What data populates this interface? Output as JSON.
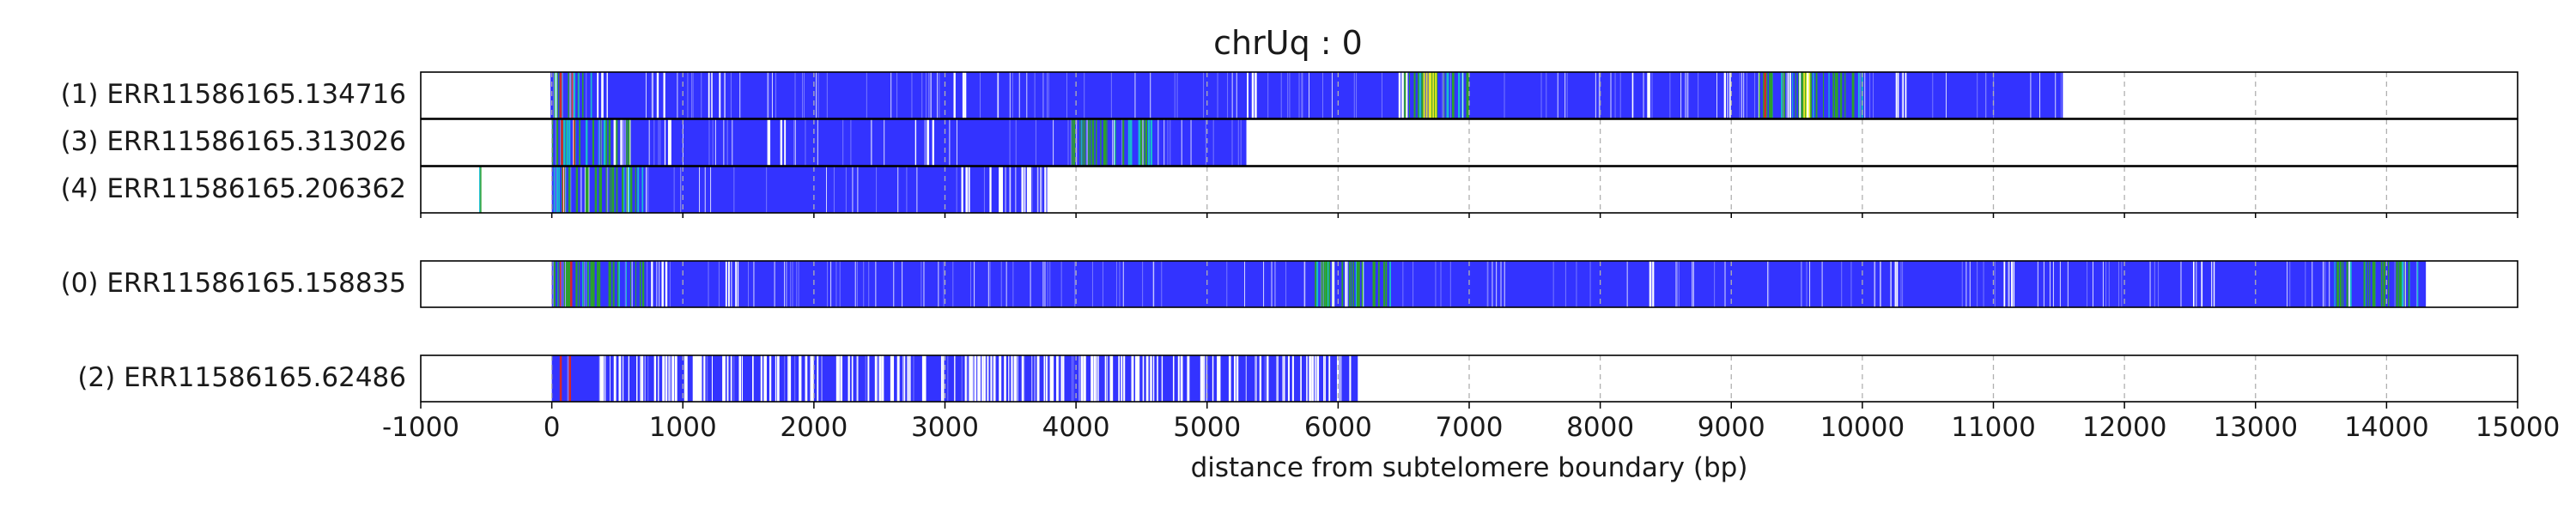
{
  "chart_data": {
    "type": "read-coverage-stripes",
    "title": "chrUq : 0",
    "xlabel": "distance from subtelomere boundary (bp)",
    "xlim": [
      -1000,
      15000
    ],
    "xticks": [
      -1000,
      0,
      1000,
      2000,
      3000,
      4000,
      5000,
      6000,
      7000,
      8000,
      9000,
      10000,
      11000,
      12000,
      13000,
      14000,
      15000
    ],
    "grid_x": true,
    "colors": {
      "telomere": "#3333ff",
      "green": "#2ca02c",
      "yellow": "#e8e820",
      "red": "#d62728",
      "cyan": "#17becf",
      "white": "#ffffff"
    },
    "groups": [
      {
        "reads": [
          {
            "label": "(1) ERR11586165.134716",
            "start": -10,
            "end": 11530,
            "green_stripes": [
              [
                0,
                300
              ],
              [
                6500,
                7000
              ],
              [
                9200,
                10000
              ]
            ],
            "yellow_stripes": [
              6650,
              6700,
              9550
            ],
            "red_stripes": [
              60,
              150,
              9250
            ],
            "white_gaps": [
              420,
              780,
              1240,
              3120,
              5330,
              6480,
              8300,
              9010,
              9500,
              10300
            ]
          },
          {
            "label": "(3) ERR11586165.313026",
            "start": 0,
            "end": 5300,
            "green_stripes": [
              [
                0,
                600
              ],
              [
                3950,
                4580
              ]
            ],
            "yellow_stripes": [],
            "red_stripes": [
              70,
              160
            ],
            "white_gaps": [
              520,
              900,
              1720,
              2830
            ]
          },
          {
            "label": "(4) ERR11586165.206362",
            "start": 0,
            "end": 3780,
            "green_stripes": [
              [
                -560,
                -540
              ],
              [
                0,
                700
              ]
            ],
            "yellow_stripes": [],
            "red_stripes": [
              80
            ],
            "white_gaps": [
              [
                3100,
                3780
              ]
            ]
          }
        ]
      },
      {
        "reads": [
          {
            "label": "(0) ERR11586165.158835",
            "start": 0,
            "end": 14300,
            "green_stripes": [
              [
                0,
                700
              ],
              [
                5800,
                6400
              ],
              [
                13600,
                14250
              ]
            ],
            "yellow_stripes": [],
            "red_stripes": [
              60,
              140
            ],
            "white_gaps": [
              800,
              1400,
              6000,
              8400,
              10200,
              11100,
              12600
            ]
          }
        ]
      },
      {
        "reads": [
          {
            "label": "(2) ERR11586165.62486",
            "start": 0,
            "end": 6150,
            "green_stripes": [],
            "yellow_stripes": [],
            "red_stripes": [
              60,
              130
            ],
            "white_gaps": [
              [
                300,
                6100
              ]
            ]
          }
        ]
      }
    ]
  }
}
